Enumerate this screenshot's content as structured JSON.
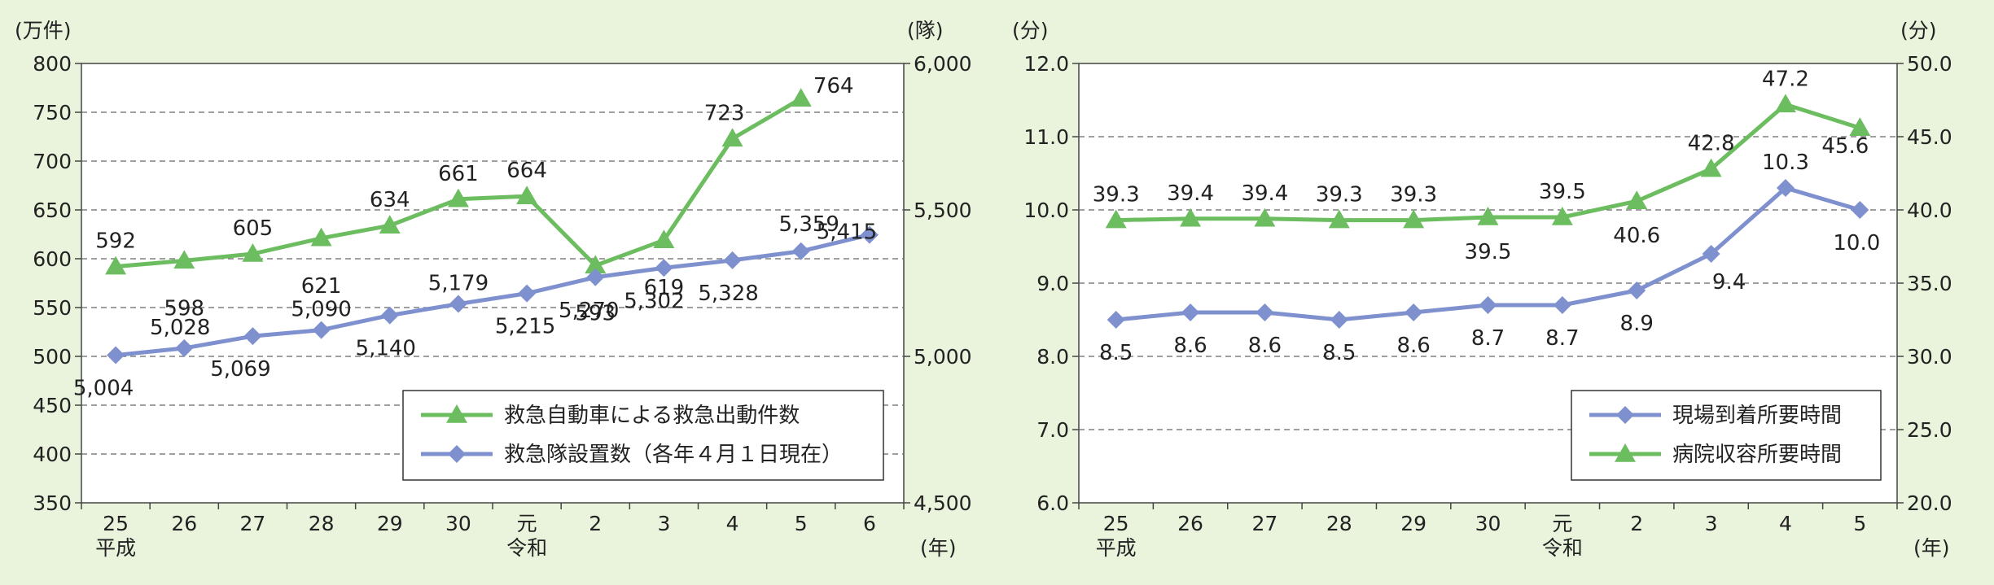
{
  "chart_data": [
    {
      "type": "line",
      "unit_left": "(万件)",
      "unit_right": "(隊)",
      "unit_x": "(年)",
      "y_left": {
        "range": [
          350,
          800
        ],
        "ticks": [
          "800",
          "750",
          "700",
          "650",
          "600",
          "550",
          "500",
          "450",
          "400",
          "350"
        ]
      },
      "y_right": {
        "range": [
          4500,
          6000
        ],
        "ticks": [
          "6,000",
          "5,500",
          "5,000",
          "4,500"
        ]
      },
      "categories": [
        "25",
        "26",
        "27",
        "28",
        "29",
        "30",
        "元",
        "2",
        "3",
        "4",
        "5",
        "6"
      ],
      "era_labels": [
        {
          "category": "25",
          "text": "平成"
        },
        {
          "category": "元",
          "text": "令和"
        }
      ],
      "grid": "horizontal dashed",
      "legend_position": "bottom-right",
      "series": [
        {
          "name": "救急自動車による救急出動件数",
          "axis": "left",
          "marker": "triangle",
          "color": "#6cbd5f",
          "values": [
            592,
            598,
            605,
            621,
            634,
            661,
            664,
            593,
            619,
            723,
            764,
            null
          ],
          "labels": [
            "592",
            "598",
            "605",
            "621",
            "634",
            "661",
            "664",
            "593",
            "619",
            "723",
            "764",
            ""
          ]
        },
        {
          "name": "救急隊設置数（各年４月１日現在）",
          "axis": "right",
          "marker": "diamond",
          "color": "#7f90cf",
          "values": [
            5004,
            5028,
            5069,
            5090,
            5140,
            5179,
            5215,
            5270,
            5302,
            5328,
            5359,
            5415
          ],
          "labels": [
            "5,004",
            "5,028",
            "5,069",
            "5,090",
            "5,140",
            "5,179",
            "5,215",
            "5,270",
            "5,302",
            "5,328",
            "5,359",
            "5,415"
          ]
        }
      ]
    },
    {
      "type": "line",
      "unit_left": "(分)",
      "unit_right": "(分)",
      "unit_x": "(年)",
      "y_left": {
        "range": [
          6.0,
          12.0
        ],
        "ticks": [
          "12.0",
          "11.0",
          "10.0",
          "9.0",
          "8.0",
          "7.0",
          "6.0"
        ]
      },
      "y_right": {
        "range": [
          20.0,
          50.0
        ],
        "ticks": [
          "50.0",
          "45.0",
          "40.0",
          "35.0",
          "30.0",
          "25.0",
          "20.0"
        ]
      },
      "categories": [
        "25",
        "26",
        "27",
        "28",
        "29",
        "30",
        "元",
        "2",
        "3",
        "4",
        "5"
      ],
      "era_labels": [
        {
          "category": "25",
          "text": "平成"
        },
        {
          "category": "元",
          "text": "令和"
        }
      ],
      "grid": "horizontal dashed",
      "legend_position": "bottom-right",
      "series": [
        {
          "name": "現場到着所要時間",
          "axis": "left",
          "marker": "diamond",
          "color": "#7f90cf",
          "values": [
            8.5,
            8.6,
            8.6,
            8.5,
            8.6,
            8.7,
            8.7,
            8.9,
            9.4,
            10.3,
            10.0
          ],
          "labels": [
            "8.5",
            "8.6",
            "8.6",
            "8.5",
            "8.6",
            "8.7",
            "8.7",
            "8.9",
            "9.4",
            "10.3",
            "10.0"
          ]
        },
        {
          "name": "病院収容所要時間",
          "axis": "right",
          "marker": "triangle",
          "color": "#6cbd5f",
          "values": [
            39.3,
            39.4,
            39.4,
            39.3,
            39.3,
            39.5,
            39.5,
            40.6,
            42.8,
            47.2,
            45.6
          ],
          "labels": [
            "39.3",
            "39.4",
            "39.4",
            "39.3",
            "39.3",
            "39.5",
            "39.5",
            "40.6",
            "42.8",
            "47.2",
            "45.6"
          ]
        }
      ]
    }
  ]
}
